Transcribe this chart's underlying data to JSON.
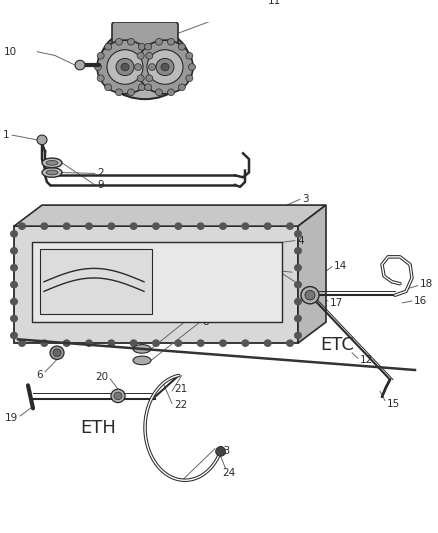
{
  "bg_color": "#ffffff",
  "line_color": "#2a2a2a",
  "gray_dark": "#555555",
  "gray_mid": "#888888",
  "gray_light": "#cccccc",
  "gray_lighter": "#e0e0e0",
  "leader_color": "#666666"
}
